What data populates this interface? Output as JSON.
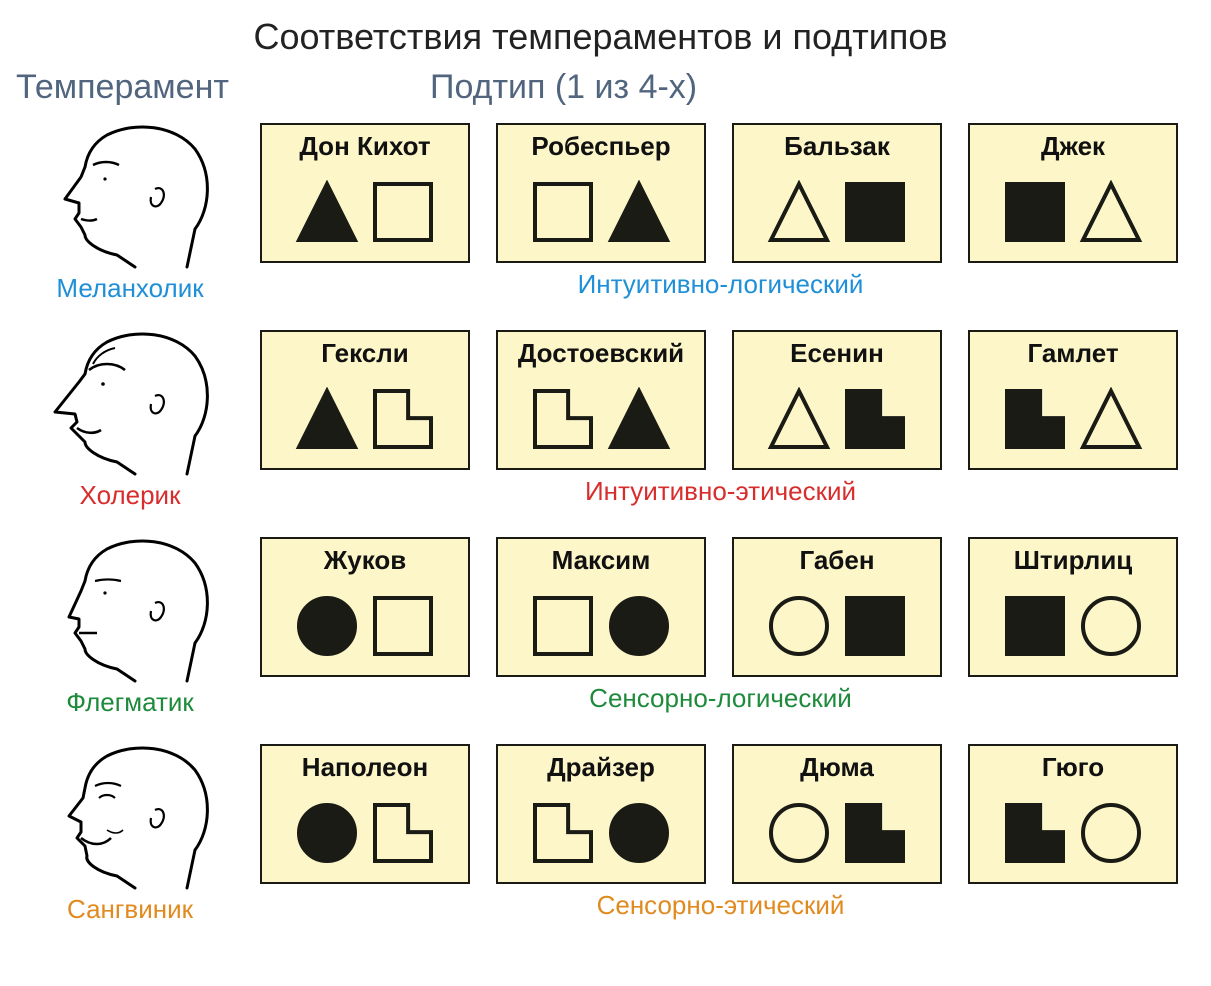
{
  "title": "Соответствия темпераментов и подтипов",
  "header_left": "Темперамент",
  "header_right": "Подтип (1 из 4-х)",
  "colors": {
    "card_bg": "#fcf6c9",
    "card_border": "#1b1b16",
    "shape_stroke": "#1b1b16",
    "shape_fill": "#1b1b16",
    "title_color": "#222222",
    "subhead_color": "#51657e",
    "row1": "#1f8fd8",
    "row2": "#d82d2d",
    "row3": "#1e8a3b",
    "row4": "#e08a1f"
  },
  "shape_size": 64,
  "rows": [
    {
      "id": "melancholic",
      "temp_label": "Меланхолик",
      "row_caption": "Интуитивно-логический",
      "color_key": "row1",
      "head_variant": 0,
      "cards": [
        {
          "label": "Дон Кихот",
          "shapes": [
            {
              "type": "triangle",
              "filled": true
            },
            {
              "type": "square",
              "filled": false
            }
          ]
        },
        {
          "label": "Робеспьер",
          "shapes": [
            {
              "type": "square",
              "filled": false
            },
            {
              "type": "triangle",
              "filled": true
            }
          ]
        },
        {
          "label": "Бальзак",
          "shapes": [
            {
              "type": "triangle",
              "filled": false
            },
            {
              "type": "square",
              "filled": true
            }
          ]
        },
        {
          "label": "Джек",
          "shapes": [
            {
              "type": "square",
              "filled": true
            },
            {
              "type": "triangle",
              "filled": false
            }
          ]
        }
      ]
    },
    {
      "id": "choleric",
      "temp_label": "Холерик",
      "row_caption": "Интуитивно-этический",
      "color_key": "row2",
      "head_variant": 1,
      "cards": [
        {
          "label": "Гексли",
          "shapes": [
            {
              "type": "triangle",
              "filled": true
            },
            {
              "type": "lshape",
              "filled": false
            }
          ]
        },
        {
          "label": "Достоевский",
          "shapes": [
            {
              "type": "lshape",
              "filled": false
            },
            {
              "type": "triangle",
              "filled": true
            }
          ]
        },
        {
          "label": "Есенин",
          "shapes": [
            {
              "type": "triangle",
              "filled": false
            },
            {
              "type": "lshape",
              "filled": true
            }
          ]
        },
        {
          "label": "Гамлет",
          "shapes": [
            {
              "type": "lshape",
              "filled": true
            },
            {
              "type": "triangle",
              "filled": false
            }
          ]
        }
      ]
    },
    {
      "id": "phlegmatic",
      "temp_label": "Флегматик",
      "row_caption": "Сенсорно-логический",
      "color_key": "row3",
      "head_variant": 2,
      "cards": [
        {
          "label": "Жуков",
          "shapes": [
            {
              "type": "circle",
              "filled": true
            },
            {
              "type": "square",
              "filled": false
            }
          ]
        },
        {
          "label": "Максим",
          "shapes": [
            {
              "type": "square",
              "filled": false
            },
            {
              "type": "circle",
              "filled": true
            }
          ]
        },
        {
          "label": "Габен",
          "shapes": [
            {
              "type": "circle",
              "filled": false
            },
            {
              "type": "square",
              "filled": true
            }
          ]
        },
        {
          "label": "Штирлиц",
          "shapes": [
            {
              "type": "square",
              "filled": true
            },
            {
              "type": "circle",
              "filled": false
            }
          ]
        }
      ]
    },
    {
      "id": "sanguine",
      "temp_label": "Сангвиник",
      "row_caption": "Сенсорно-этический",
      "color_key": "row4",
      "head_variant": 3,
      "cards": [
        {
          "label": "Наполеон",
          "shapes": [
            {
              "type": "circle",
              "filled": true
            },
            {
              "type": "lshape",
              "filled": false
            }
          ]
        },
        {
          "label": "Драйзер",
          "shapes": [
            {
              "type": "lshape",
              "filled": false
            },
            {
              "type": "circle",
              "filled": true
            }
          ]
        },
        {
          "label": "Дюма",
          "shapes": [
            {
              "type": "circle",
              "filled": false
            },
            {
              "type": "lshape",
              "filled": true
            }
          ]
        },
        {
          "label": "Гюго",
          "shapes": [
            {
              "type": "lshape",
              "filled": true
            },
            {
              "type": "circle",
              "filled": false
            }
          ]
        }
      ]
    }
  ]
}
